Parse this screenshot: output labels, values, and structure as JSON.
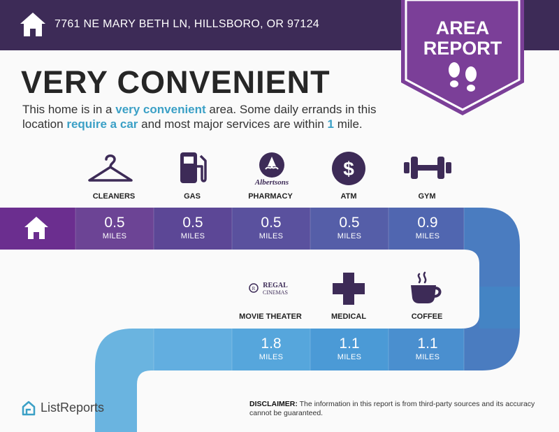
{
  "header": {
    "address": "7761 NE MARY BETH LN, HILLSBORO, OR 97124",
    "badge_line1": "AREA",
    "badge_line2": "REPORT"
  },
  "main": {
    "headline": "VERY CONVENIENT",
    "desc_1": "This home is in a ",
    "desc_hl1": "very convenient",
    "desc_2": " area. Some daily errands in this location ",
    "desc_hl2": "require a car",
    "desc_3": " and most major services are within ",
    "desc_hl3": "1",
    "desc_4": " mile."
  },
  "row1": [
    {
      "label": "CLEANERS",
      "icon": "hanger-icon",
      "value": "0.5",
      "unit": "MILES"
    },
    {
      "label": "GAS",
      "icon": "gas-pump-icon",
      "value": "0.5",
      "unit": "MILES"
    },
    {
      "label": "PHARMACY",
      "icon": "albertsons-logo",
      "logo_text": "Albertsons",
      "value": "0.5",
      "unit": "MILES"
    },
    {
      "label": "ATM",
      "icon": "dollar-icon",
      "symbol": "$",
      "value": "0.5",
      "unit": "MILES"
    },
    {
      "label": "GYM",
      "icon": "dumbbell-icon",
      "value": "0.9",
      "unit": "MILES"
    }
  ],
  "row2": [
    {
      "label": "MOVIE THEATER",
      "icon": "regal-cinemas-logo",
      "logo_text1": "REGAL",
      "logo_text2": "CINEMAS",
      "value": "1.8",
      "unit": "MILES"
    },
    {
      "label": "MEDICAL",
      "icon": "medical-cross-icon",
      "value": "1.1",
      "unit": "MILES"
    },
    {
      "label": "COFFEE",
      "icon": "coffee-cup-icon",
      "value": "1.1",
      "unit": "MILES"
    }
  ],
  "footer": {
    "brand": "ListReports",
    "disclaimer_label": "DISCLAIMER:",
    "disclaimer_text": " The information in this report is from third-party sources and its accuracy cannot be guaranteed."
  },
  "colors": {
    "header_bg": "#3d2b57",
    "badge": "#7b3f98",
    "accent_blue": "#3ba0c6"
  }
}
